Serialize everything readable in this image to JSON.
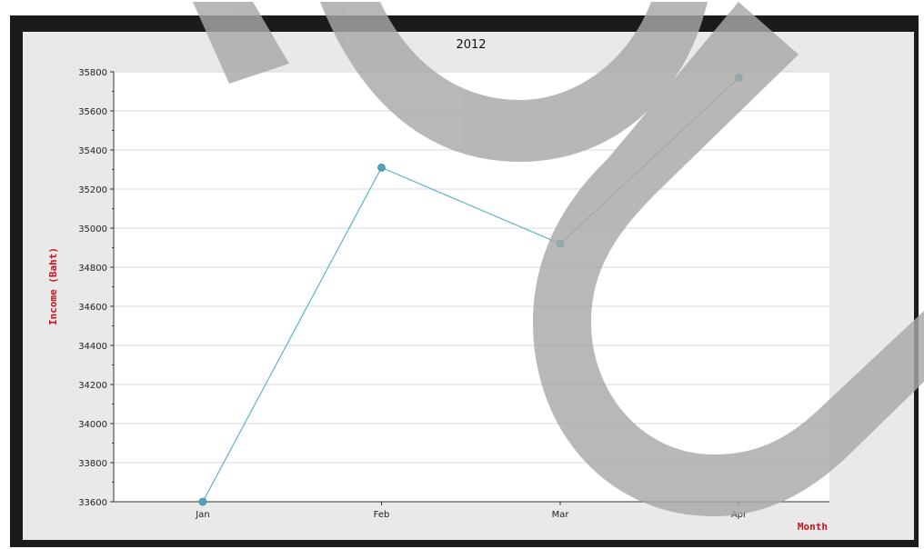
{
  "chart_data": {
    "type": "line",
    "title": "2012",
    "xlabel": "Month",
    "ylabel": "Income (Baht)",
    "categories": [
      "Jan",
      "Feb",
      "Mar",
      "Apr"
    ],
    "series": [
      {
        "values": [
          33600,
          35310,
          34920,
          35770
        ]
      }
    ],
    "ylim": [
      33600,
      35800
    ],
    "yticks": [
      33600,
      33800,
      34000,
      34200,
      34400,
      34600,
      34800,
      35000,
      35200,
      35400,
      35600,
      35800
    ],
    "grid": true,
    "legend": "none"
  },
  "colors": {
    "line": "#5bb5c7",
    "marker": "#4aa6b8",
    "axis_label": "#c8141e",
    "grid": "#d8d8d8",
    "plot_bg": "#ffffff",
    "panel_bg": "#e9e9e9",
    "frame": "#1b1b1b",
    "watermark": "#a8a8a8"
  }
}
